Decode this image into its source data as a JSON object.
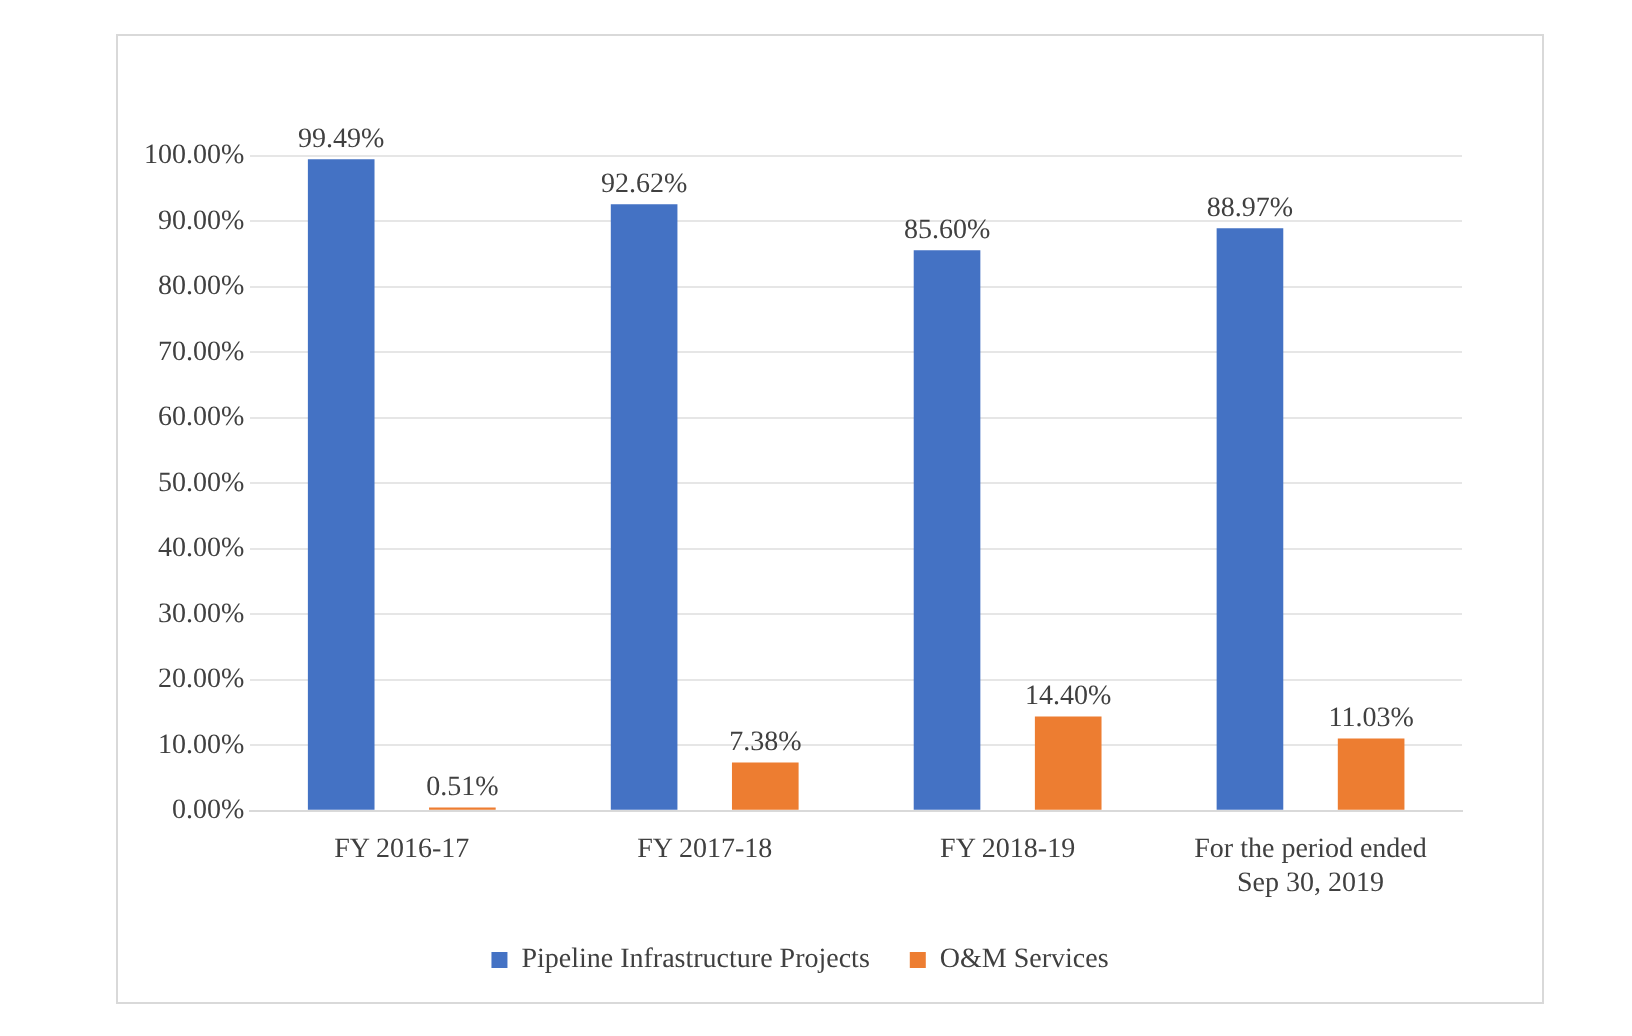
{
  "chart_data": {
    "type": "bar",
    "categories": [
      "FY 2016-17",
      "FY 2017-18",
      "FY 2018-19",
      "For the period ended Sep 30, 2019"
    ],
    "series": [
      {
        "name": "Pipeline Infrastructure Projects",
        "color": "#4472c4",
        "values": [
          99.49,
          92.62,
          85.6,
          88.97
        ],
        "value_labels": [
          "99.49%",
          "92.62%",
          "85.60%",
          "88.97%"
        ]
      },
      {
        "name": "O&M Services",
        "color": "#ed7d31",
        "values": [
          0.51,
          7.38,
          14.4,
          11.03
        ],
        "value_labels": [
          "0.51%",
          "7.38%",
          "14.40%",
          "11.03%"
        ]
      }
    ],
    "ylim": [
      0,
      100
    ],
    "yticks": [
      {
        "value": 0,
        "label": "0.00%"
      },
      {
        "value": 10,
        "label": "10.00%"
      },
      {
        "value": 20,
        "label": "20.00%"
      },
      {
        "value": 30,
        "label": "30.00%"
      },
      {
        "value": 40,
        "label": "40.00%"
      },
      {
        "value": 50,
        "label": "50.00%"
      },
      {
        "value": 60,
        "label": "60.00%"
      },
      {
        "value": 70,
        "label": "70.00%"
      },
      {
        "value": 80,
        "label": "80.00%"
      },
      {
        "value": 90,
        "label": "90.00%"
      },
      {
        "value": 100,
        "label": "100.00%"
      }
    ],
    "grid": "y",
    "legend": "bottom"
  }
}
